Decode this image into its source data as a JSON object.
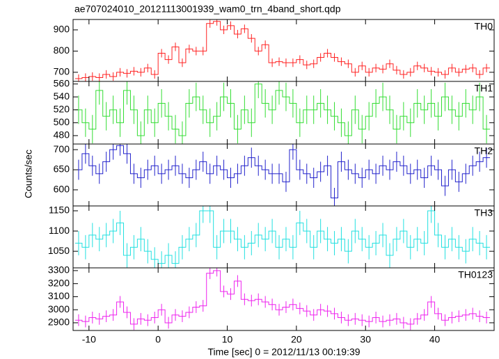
{
  "title": "ae707024010_20121113001939_wam0_trn_4band_short.qdp",
  "y_label": "Counts/sec",
  "x_label": "Time [sec] 0 = 2012/11/13 00:19:39",
  "chart_data": [
    {
      "type": "step",
      "name": "TH0",
      "color": "#ff2222",
      "error": 20,
      "x": [
        -11.5,
        -10.5,
        -9.5,
        -8.5,
        -7.5,
        -6.5,
        -5.5,
        -4.5,
        -3.5,
        -2.5,
        -1.5,
        -0.5,
        0.5,
        1.5,
        2.5,
        3.5,
        4.5,
        5.5,
        6.5,
        7.5,
        8.5,
        9.5,
        10.5,
        11.5,
        12.5,
        13.5,
        14.5,
        15.5,
        16.5,
        17.5,
        18.5,
        19.5,
        20.5,
        21.5,
        22.5,
        23.5,
        24.5,
        25.5,
        26.5,
        27.5,
        28.5,
        29.5,
        30.5,
        31.5,
        32.5,
        33.5,
        34.5,
        35.5,
        36.5,
        37.5,
        38.5,
        39.5,
        40.5,
        41.5,
        42.5,
        43.5,
        44.5,
        45.5,
        46.5,
        47.5
      ],
      "values": [
        670,
        675,
        680,
        675,
        690,
        680,
        700,
        695,
        705,
        700,
        720,
        690,
        790,
        760,
        820,
        745,
        810,
        800,
        800,
        930,
        940,
        900,
        920,
        880,
        905,
        860,
        800,
        830,
        745,
        750,
        745,
        745,
        760,
        735,
        740,
        770,
        790,
        770,
        750,
        740,
        700,
        730,
        700,
        720,
        715,
        740,
        710,
        690,
        700,
        730,
        720,
        705,
        700,
        690,
        720,
        700,
        715,
        720,
        690,
        720
      ],
      "xlim": [
        -12.3,
        48.6
      ],
      "xticks": [
        -10,
        0,
        10,
        20,
        30,
        40
      ],
      "ylim": [
        657,
        949
      ],
      "yticks": [
        700,
        800,
        900
      ]
    },
    {
      "type": "step",
      "name": "TH1",
      "color": "#33dd33",
      "error": 22,
      "x": [
        -11.5,
        -10.5,
        -9.5,
        -8.5,
        -7.5,
        -6.5,
        -5.5,
        -4.5,
        -3.5,
        -2.5,
        -1.5,
        -0.5,
        0.5,
        1.5,
        2.5,
        3.5,
        4.5,
        5.5,
        6.5,
        7.5,
        8.5,
        9.5,
        10.5,
        11.5,
        12.5,
        13.5,
        14.5,
        15.5,
        16.5,
        17.5,
        18.5,
        19.5,
        20.5,
        21.5,
        22.5,
        23.5,
        24.5,
        25.5,
        26.5,
        27.5,
        28.5,
        29.5,
        30.5,
        31.5,
        32.5,
        33.5,
        34.5,
        35.5,
        36.5,
        37.5,
        38.5,
        39.5,
        40.5,
        41.5,
        42.5,
        43.5,
        44.5,
        45.5,
        46.5,
        47.5
      ],
      "values": [
        520,
        500,
        490,
        550,
        510,
        520,
        500,
        550,
        520,
        480,
        520,
        500,
        530,
        510,
        490,
        480,
        530,
        540,
        520,
        500,
        510,
        540,
        530,
        490,
        520,
        500,
        560,
        530,
        520,
        550,
        540,
        530,
        500,
        520,
        520,
        530,
        520,
        510,
        500,
        480,
        520,
        490,
        510,
        530,
        540,
        520,
        490,
        510,
        500,
        530,
        520,
        530,
        510,
        540,
        520,
        510,
        530,
        520,
        540,
        490
      ],
      "xlim": [
        -12.3,
        48.6
      ],
      "xticks": [
        -10,
        0,
        10,
        20,
        30,
        40
      ],
      "ylim": [
        467,
        564
      ],
      "yticks": [
        480,
        500,
        520,
        540,
        560
      ]
    },
    {
      "type": "step",
      "name": "TH2",
      "color": "#2222cc",
      "error": 25,
      "x": [
        -11.5,
        -10.5,
        -9.5,
        -8.5,
        -7.5,
        -6.5,
        -5.5,
        -4.5,
        -3.5,
        -2.5,
        -1.5,
        -0.5,
        0.5,
        1.5,
        2.5,
        3.5,
        4.5,
        5.5,
        6.5,
        7.5,
        8.5,
        9.5,
        10.5,
        11.5,
        12.5,
        13.5,
        14.5,
        15.5,
        16.5,
        17.5,
        18.5,
        19.5,
        20.5,
        21.5,
        22.5,
        23.5,
        24.5,
        25.5,
        26.5,
        27.5,
        28.5,
        29.5,
        30.5,
        31.5,
        32.5,
        33.5,
        34.5,
        35.5,
        36.5,
        37.5,
        38.5,
        39.5,
        40.5,
        41.5,
        42.5,
        43.5,
        44.5,
        45.5,
        46.5,
        47.5
      ],
      "values": [
        650,
        690,
        660,
        640,
        670,
        700,
        710,
        690,
        640,
        630,
        650,
        660,
        640,
        650,
        660,
        640,
        630,
        650,
        670,
        640,
        660,
        650,
        630,
        640,
        660,
        680,
        660,
        650,
        640,
        640,
        620,
        700,
        650,
        640,
        630,
        645,
        660,
        580,
        670,
        650,
        640,
        630,
        650,
        640,
        660,
        650,
        670,
        660,
        640,
        650,
        630,
        660,
        650,
        610,
        650,
        620,
        640,
        660,
        670,
        680
      ],
      "xlim": [
        -12.3,
        48.6
      ],
      "xticks": [
        -10,
        0,
        10,
        20,
        30,
        40
      ],
      "ylim": [
        560,
        714
      ],
      "yticks": [
        600,
        650,
        700
      ]
    },
    {
      "type": "step",
      "name": "TH3",
      "color": "#22e0e0",
      "error": 30,
      "x": [
        -11.5,
        -10.5,
        -9.5,
        -8.5,
        -7.5,
        -6.5,
        -5.5,
        -4.5,
        -3.5,
        -2.5,
        -1.5,
        -0.5,
        0.5,
        1.5,
        2.5,
        3.5,
        4.5,
        5.5,
        6.5,
        7.5,
        8.5,
        9.5,
        10.5,
        11.5,
        12.5,
        13.5,
        14.5,
        15.5,
        16.5,
        17.5,
        18.5,
        19.5,
        20.5,
        21.5,
        22.5,
        23.5,
        24.5,
        25.5,
        26.5,
        27.5,
        28.5,
        29.5,
        30.5,
        31.5,
        32.5,
        33.5,
        34.5,
        35.5,
        36.5,
        37.5,
        38.5,
        39.5,
        40.5,
        41.5,
        42.5,
        43.5,
        44.5,
        45.5,
        46.5,
        47.5
      ],
      "values": [
        1070,
        1060,
        1090,
        1080,
        1090,
        1100,
        1120,
        1040,
        1060,
        1080,
        1050,
        1030,
        1020,
        1040,
        1020,
        1060,
        1080,
        1090,
        1150,
        1150,
        1060,
        1100,
        1100,
        1080,
        1060,
        1070,
        1090,
        1080,
        1100,
        1060,
        1080,
        1060,
        1120,
        1100,
        1060,
        1100,
        1080,
        1070,
        1080,
        1050,
        1100,
        1080,
        1060,
        1070,
        1090,
        1040,
        1080,
        1100,
        1060,
        1080,
        1070,
        1150,
        1090,
        1060,
        1080,
        1060,
        1050,
        1080,
        1070,
        1060
      ],
      "xlim": [
        -12.3,
        48.6
      ],
      "xticks": [
        -10,
        0,
        10,
        20,
        30,
        40
      ],
      "ylim": [
        1009,
        1162
      ],
      "yticks": [
        1050,
        1100,
        1150
      ]
    },
    {
      "type": "step",
      "name": "TH0123",
      "color": "#ee22ee",
      "error": 45,
      "x": [
        -11.5,
        -10.5,
        -9.5,
        -8.5,
        -7.5,
        -6.5,
        -5.5,
        -4.5,
        -3.5,
        -2.5,
        -1.5,
        -0.5,
        0.5,
        1.5,
        2.5,
        3.5,
        4.5,
        5.5,
        6.5,
        7.5,
        8.5,
        9.5,
        10.5,
        11.5,
        12.5,
        13.5,
        14.5,
        15.5,
        16.5,
        17.5,
        18.5,
        19.5,
        20.5,
        21.5,
        22.5,
        23.5,
        24.5,
        25.5,
        26.5,
        27.5,
        28.5,
        29.5,
        30.5,
        31.5,
        32.5,
        33.5,
        34.5,
        35.5,
        36.5,
        37.5,
        38.5,
        39.5,
        40.5,
        41.5,
        42.5,
        43.5,
        44.5,
        45.5,
        46.5,
        47.5
      ],
      "values": [
        2920,
        2910,
        2940,
        2930,
        2950,
        2960,
        3060,
        2980,
        2890,
        2930,
        2920,
        2940,
        3000,
        2900,
        2960,
        2950,
        2980,
        3020,
        3030,
        3280,
        3300,
        3140,
        3120,
        3220,
        3080,
        3070,
        3080,
        3060,
        3040,
        3000,
        3020,
        3040,
        3010,
        2990,
        2960,
        3000,
        2990,
        2970,
        2940,
        2920,
        2930,
        2920,
        2910,
        2940,
        2910,
        2920,
        2930,
        2900,
        2890,
        2930,
        2960,
        3060,
        2970,
        2920,
        2940,
        2950,
        2960,
        2970,
        2950,
        2940
      ],
      "xlim": [
        -12.3,
        48.6
      ],
      "xticks": [
        -10,
        0,
        10,
        20,
        30,
        40
      ],
      "ylim": [
        2841,
        3321
      ],
      "yticks": [
        2900,
        3000,
        3100,
        3200,
        3300
      ]
    }
  ]
}
